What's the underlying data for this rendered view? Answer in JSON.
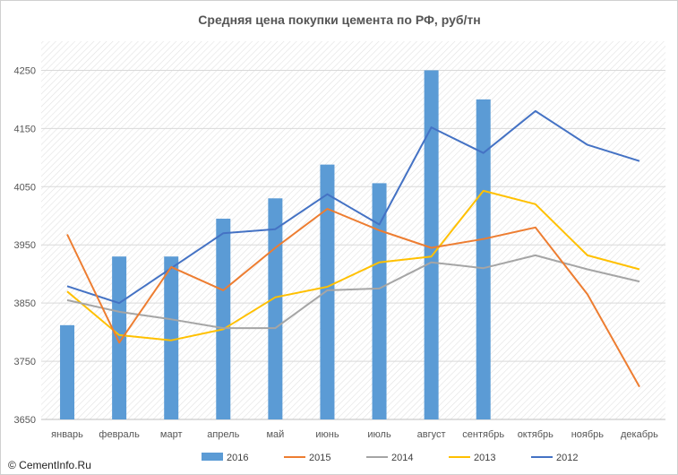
{
  "chart_data": {
    "type": "bar",
    "title": "Средняя цена покупки цемента по РФ, руб/тн",
    "xlabel": "",
    "ylabel": "",
    "ylim": [
      3650,
      4300
    ],
    "yticks": [
      3650,
      3750,
      3850,
      3950,
      4050,
      4150,
      4250
    ],
    "grid": true,
    "legend_position": "bottom",
    "categories": [
      "январь",
      "февраль",
      "март",
      "апрель",
      "май",
      "июнь",
      "июль",
      "август",
      "сентябрь",
      "октябрь",
      "ноябрь",
      "декабрь"
    ],
    "series": [
      {
        "name": "2016",
        "kind": "bar",
        "color": "#5b9bd5",
        "values": [
          3812,
          3930,
          3930,
          3995,
          4030,
          4088,
          4056,
          4250,
          4200,
          null,
          null,
          null
        ]
      },
      {
        "name": "2015",
        "kind": "line",
        "color": "#ed7d31",
        "values": [
          3968,
          3782,
          3912,
          3872,
          3945,
          4012,
          3975,
          3945,
          3960,
          3980,
          3865,
          3706
        ]
      },
      {
        "name": "2014",
        "kind": "line",
        "color": "#a5a5a5",
        "values": [
          3855,
          3835,
          3822,
          3807,
          3807,
          3872,
          3875,
          3920,
          3910,
          3932,
          3908,
          3887
        ]
      },
      {
        "name": "2013",
        "kind": "line",
        "color": "#ffc000",
        "values": [
          3870,
          3795,
          3786,
          3805,
          3860,
          3878,
          3920,
          3930,
          4043,
          4020,
          3932,
          3908
        ]
      },
      {
        "name": "2012",
        "kind": "line",
        "color": "#4472c4",
        "values": [
          3879,
          3850,
          3910,
          3970,
          3977,
          4037,
          3985,
          4152,
          4108,
          4180,
          4122,
          4094
        ]
      }
    ]
  },
  "credit": "© CementInfo.Ru"
}
